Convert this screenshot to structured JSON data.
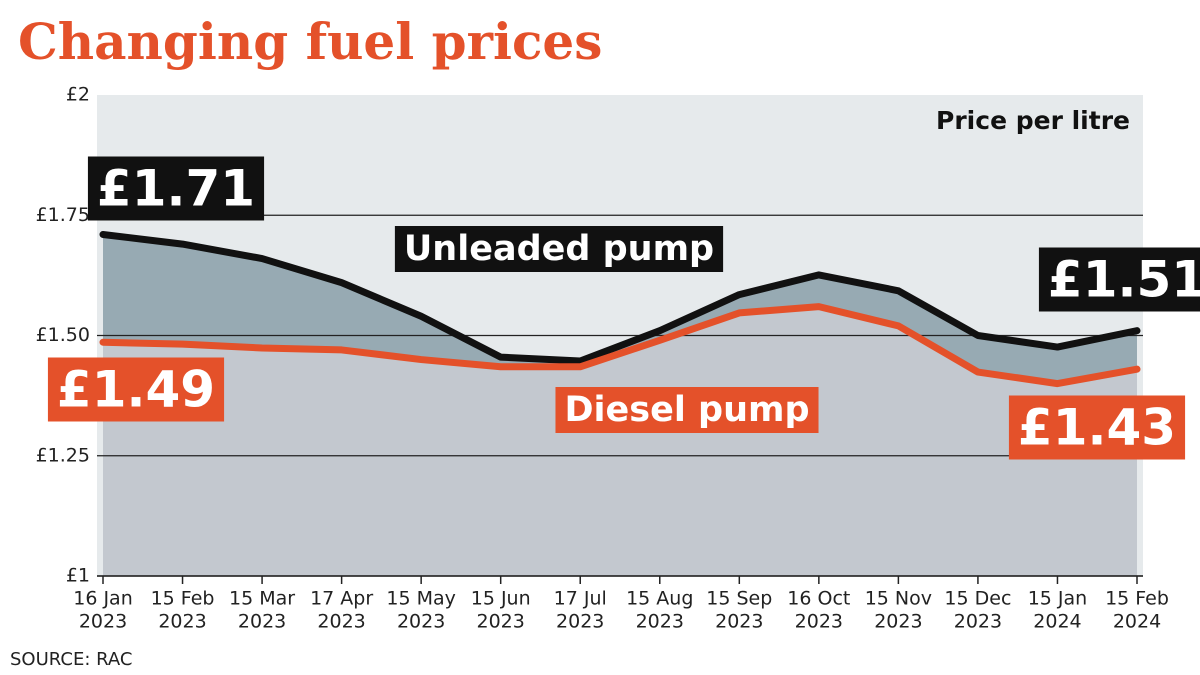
{
  "chart_data": {
    "type": "area",
    "title": "Changing fuel prices",
    "unit_label": "Price per litre",
    "source": "SOURCE: RAC",
    "categories": [
      [
        "16 Jan",
        "2023"
      ],
      [
        "15 Feb",
        "2023"
      ],
      [
        "15 Mar",
        "2023"
      ],
      [
        "17 Apr",
        "2023"
      ],
      [
        "15 May",
        "2023"
      ],
      [
        "15 Jun",
        "2023"
      ],
      [
        "17 Jul",
        "2023"
      ],
      [
        "15 Aug",
        "2023"
      ],
      [
        "15 Sep",
        "2023"
      ],
      [
        "16 Oct",
        "2023"
      ],
      [
        "15 Nov",
        "2023"
      ],
      [
        "15 Dec",
        "2023"
      ],
      [
        "15 Jan",
        "2024"
      ],
      [
        "15 Feb",
        "2024"
      ]
    ],
    "series": [
      {
        "name": "Unleaded pump",
        "color": "#111111",
        "fill": "#97aab3",
        "values": [
          1.71,
          1.69,
          1.66,
          1.61,
          1.54,
          1.455,
          1.447,
          1.51,
          1.585,
          1.626,
          1.593,
          1.5,
          1.476,
          1.51
        ],
        "value_labels": [
          "£1.71",
          null,
          null,
          null,
          null,
          null,
          null,
          null,
          null,
          null,
          null,
          null,
          null,
          "£1.51"
        ]
      },
      {
        "name": "Diesel pump",
        "color": "#e4512a",
        "fill": "#c3c8cf",
        "values": [
          1.486,
          1.482,
          1.474,
          1.47,
          1.45,
          1.435,
          1.435,
          1.49,
          1.547,
          1.56,
          1.52,
          1.424,
          1.4,
          1.43
        ],
        "value_labels": [
          "£1.49",
          null,
          null,
          null,
          null,
          null,
          null,
          null,
          null,
          null,
          null,
          null,
          null,
          "£1.43"
        ]
      }
    ],
    "ylim": [
      1,
      2
    ],
    "yticks": [
      {
        "value": 1,
        "label": "£1"
      },
      {
        "value": 1.25,
        "label": "£1.25"
      },
      {
        "value": 1.5,
        "label": "£1.50"
      },
      {
        "value": 1.75,
        "label": "£1.75"
      },
      {
        "value": 2,
        "label": "£2"
      }
    ],
    "grid": true,
    "background": "#e6eaec"
  }
}
